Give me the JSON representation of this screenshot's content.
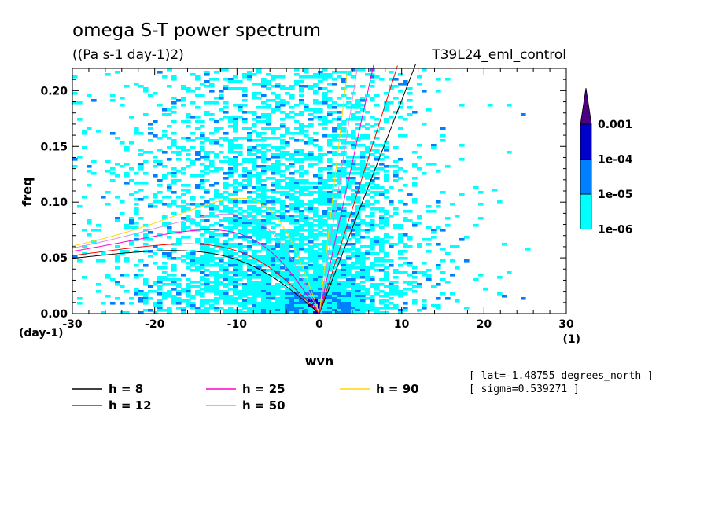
{
  "chart_data": {
    "type": "heatmap",
    "title": "omega S-T power spectrum",
    "units": "((Pa s-1 day-1)2)",
    "case_name": "T39L24_eml_control",
    "xlabel": "wvn",
    "ylabel": "freq",
    "x_unit": "(1)",
    "y_unit": "(day-1)",
    "xlim": [
      -30,
      30
    ],
    "ylim": [
      0,
      0.22
    ],
    "x_ticks": [
      "-30",
      "-20",
      "-10",
      "0",
      "10",
      "20",
      "30"
    ],
    "y_ticks": [
      "0.00",
      "0.05",
      "0.10",
      "0.15",
      "0.20"
    ],
    "colorbar": {
      "levels": [
        "1e-06",
        "1e-05",
        "1e-04",
        "0.001"
      ],
      "colors": [
        "#00ffff",
        "#0080ff",
        "#0000cc",
        "#4b0082"
      ]
    },
    "dispersion_curves": [
      {
        "name": "h =  8",
        "label": "h =  8",
        "h": 8,
        "color": "#000000"
      },
      {
        "name": "h = 12",
        "label": "h = 12",
        "h": 12,
        "color": "#ff0000"
      },
      {
        "name": "h = 25",
        "label": "h = 25",
        "h": 25,
        "color": "#ff00c8"
      },
      {
        "name": "h = 50",
        "label": "h = 50",
        "h": 50,
        "color": "#e08ce0"
      },
      {
        "name": "h = 90",
        "label": "h = 90",
        "h": 90,
        "color": "#ffd800"
      }
    ],
    "info": [
      "[ lat=-1.48755 degrees_north ]",
      "[ sigma=0.539271 ]"
    ],
    "grid": false,
    "legend_position": "bottom"
  }
}
